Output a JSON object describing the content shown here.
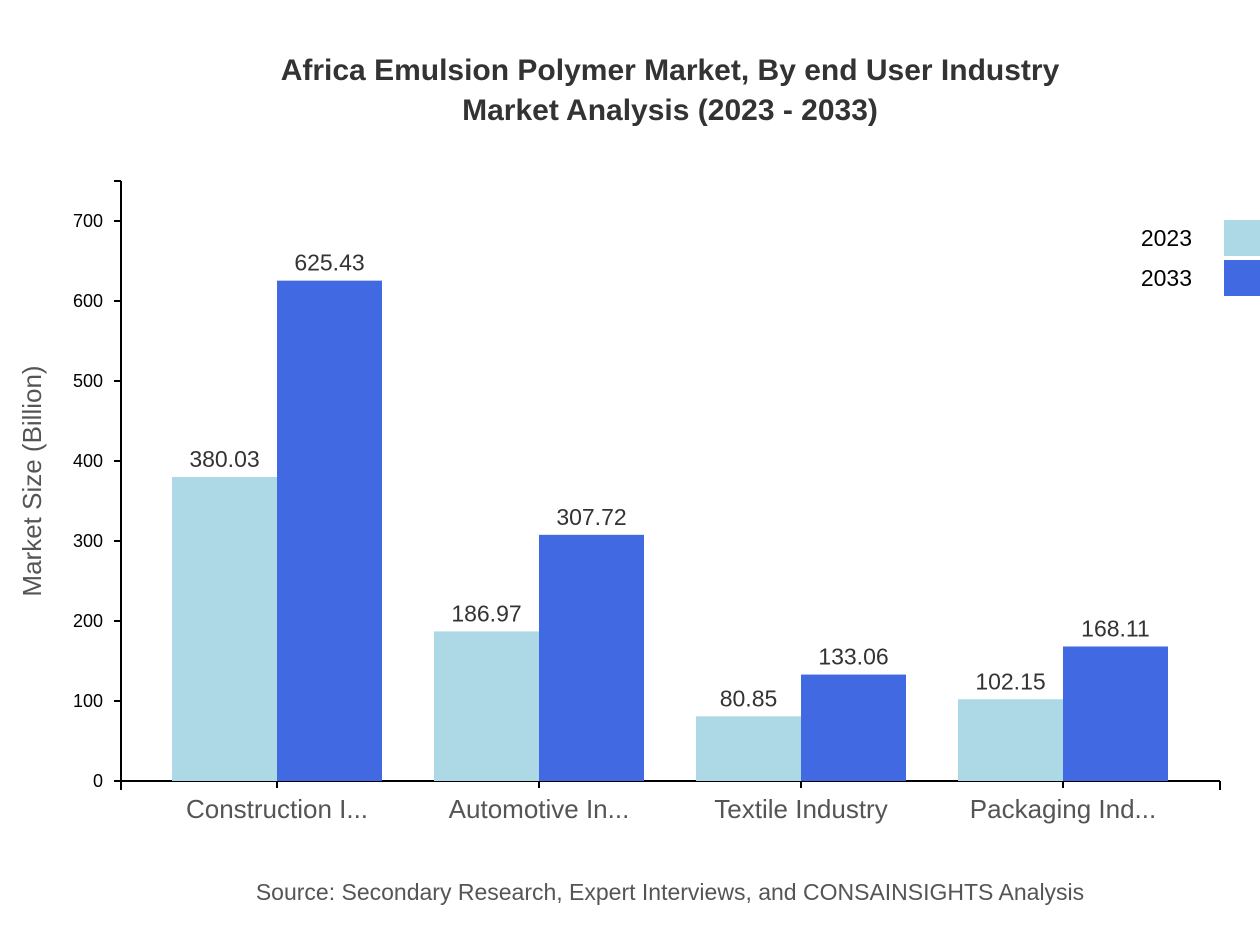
{
  "chart_data": {
    "type": "bar",
    "title": "Africa Emulsion Polymer Market, By end User Industry",
    "subtitle": "Market Analysis (2023 - 2033)",
    "xlabel": "",
    "ylabel": "Market Size (Billion)",
    "categories": [
      "Construction I...",
      "Automotive In...",
      "Textile Industry",
      "Packaging Ind..."
    ],
    "series": [
      {
        "name": "2023",
        "color": "#ADD8E6",
        "values": [
          380.03,
          186.97,
          80.85,
          102.15
        ]
      },
      {
        "name": "2033",
        "color": "#4169E1",
        "values": [
          625.43,
          307.72,
          133.06,
          168.11
        ]
      }
    ],
    "ylim": [
      0,
      750
    ],
    "yticks": [
      0,
      100,
      200,
      300,
      400,
      500,
      600,
      700
    ],
    "grid": false,
    "legend_position": "top-right",
    "source": "Source: Secondary Research, Expert Interviews, and CONSAINSIGHTS Analysis"
  }
}
